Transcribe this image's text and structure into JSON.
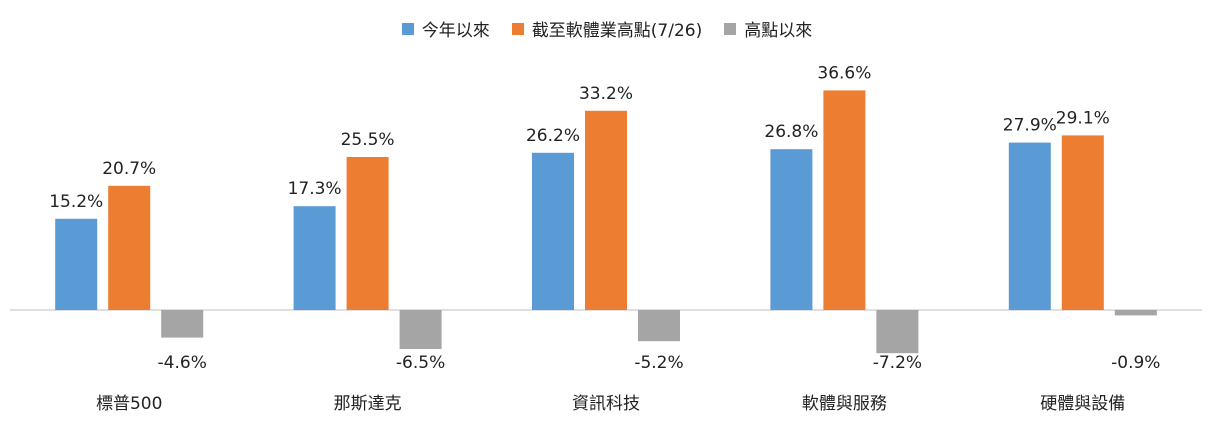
{
  "chart_data": {
    "type": "bar",
    "categories": [
      "標普500",
      "那斯達克",
      "資訊科技",
      "軟體與服務",
      "硬體與設備"
    ],
    "series": [
      {
        "name": "今年以來",
        "color": "#5b9bd5",
        "values": [
          15.2,
          17.3,
          26.2,
          26.8,
          27.9
        ],
        "labels": [
          "15.2%",
          "17.3%",
          "26.2%",
          "26.8%",
          "27.9%"
        ]
      },
      {
        "name": "截至軟體業高點(7/26)",
        "color": "#ed7d31",
        "values": [
          20.7,
          25.5,
          33.2,
          36.6,
          29.1
        ],
        "labels": [
          "20.7%",
          "25.5%",
          "33.2%",
          "36.6%",
          "29.1%"
        ]
      },
      {
        "name": "高點以來",
        "color": "#a5a5a5",
        "values": [
          -4.6,
          -6.5,
          -5.2,
          -7.2,
          -0.9
        ],
        "labels": [
          "-4.6%",
          "-6.5%",
          "-5.2%",
          "-7.2%",
          "-0.9%"
        ]
      }
    ],
    "legend_position": "top-center",
    "grid": false
  }
}
